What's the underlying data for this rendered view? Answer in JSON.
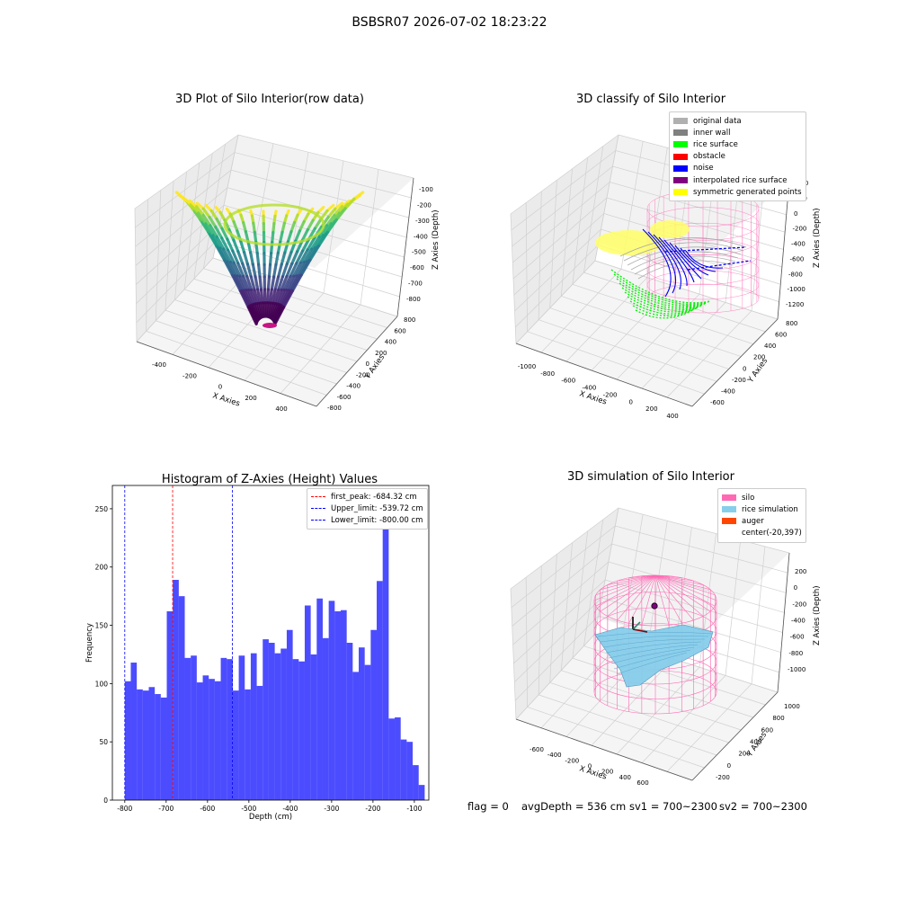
{
  "suptitle": "BSBSR07 2026-07-02 18:23:22",
  "panels": {
    "raw": {
      "title": "3D Plot of Silo Interior(row data)",
      "xlabel": "X Axies",
      "ylabel": "Y Axies",
      "zlabel": "Z Axies (Depth)",
      "xticks": [
        "-400",
        "-200",
        "0",
        "200",
        "400"
      ],
      "yticks": [
        "800",
        "600",
        "400",
        "200",
        "0",
        "-200",
        "-400",
        "-600",
        "-800"
      ],
      "zticks": [
        "-100",
        "-200",
        "-300",
        "-400",
        "-500",
        "-600",
        "-700",
        "-800"
      ]
    },
    "classify": {
      "title": "3D classify of Silo Interior",
      "xlabel": "X Axies",
      "ylabel": "Y Axies",
      "zlabel": "Z Axies (Depth)",
      "xticks": [
        "-1000",
        "-800",
        "-600",
        "-400",
        "-200",
        "0",
        "200",
        "400"
      ],
      "yticks": [
        "800",
        "600",
        "400",
        "200",
        "0",
        "-200",
        "-400",
        "-600"
      ],
      "zticks": [
        "400",
        "200",
        "0",
        "-200",
        "-400",
        "-600",
        "-800",
        "-1000",
        "-1200"
      ],
      "legend": [
        {
          "label": "original data",
          "color": "#b0b0b0"
        },
        {
          "label": "inner wall",
          "color": "#808080"
        },
        {
          "label": "rice surface",
          "color": "#00ff00"
        },
        {
          "label": "obstacle",
          "color": "#ff0000"
        },
        {
          "label": "noise",
          "color": "#0000ff"
        },
        {
          "label": "interpolated rice surface",
          "color": "#800080"
        },
        {
          "label": "symmetric generated points",
          "color": "#ffff00"
        }
      ]
    },
    "simulation": {
      "title": "3D simulation of Silo Interior",
      "xlabel": "X Axies",
      "ylabel": "Y Axies",
      "zlabel": "Z Axies (Depth)",
      "xticks": [
        "-600",
        "-400",
        "-200",
        "0",
        "200",
        "400",
        "600"
      ],
      "yticks": [
        "1000",
        "800",
        "600",
        "400",
        "200",
        "0",
        "-200"
      ],
      "zticks": [
        "200",
        "0",
        "-200",
        "-400",
        "-600",
        "-800",
        "-1000"
      ],
      "legend": [
        {
          "label": "silo",
          "color": "#ff69b4"
        },
        {
          "label": "rice simulation",
          "color": "#87ceeb"
        },
        {
          "label": "auger",
          "color": "#ff4500"
        },
        {
          "label": "center(-20,397)",
          "color": ""
        }
      ]
    }
  },
  "chart_data": {
    "type": "bar",
    "title": "Histogram of Z-Axies (Height) Values",
    "xlabel": "Depth (cm)",
    "ylabel": "Frequency",
    "xlim": [
      -830,
      -65
    ],
    "ylim": [
      0,
      270
    ],
    "xticks": [
      -800,
      -700,
      -600,
      -500,
      -400,
      -300,
      -200,
      -100
    ],
    "yticks": [
      0,
      50,
      100,
      150,
      200,
      250
    ],
    "bin_width": 14.5,
    "x_start": -800,
    "values": [
      102,
      118,
      95,
      94,
      97,
      91,
      88,
      162,
      189,
      175,
      122,
      124,
      101,
      107,
      104,
      102,
      122,
      121,
      94,
      124,
      95,
      126,
      98,
      138,
      135,
      126,
      130,
      146,
      121,
      119,
      167,
      125,
      173,
      139,
      171,
      162,
      163,
      135,
      110,
      131,
      116,
      146,
      188,
      260,
      70,
      71,
      52,
      50,
      30,
      13
    ],
    "color": "#0000ff",
    "vlines": [
      {
        "x": -684.32,
        "color": "#ff0000",
        "label": "first_peak: -684.32 cm"
      },
      {
        "x": -539.72,
        "color": "#0000ff",
        "label": "Upper_limit: -539.72 cm"
      },
      {
        "x": -800.0,
        "color": "#0000ff",
        "label": "Lower_limit: -800.00 cm"
      }
    ]
  },
  "footer": {
    "flag": "flag = 0",
    "avg": "avgDepth = 536 cm",
    "sv1": "sv1 = 700~2300",
    "sv2": "sv2 = 700~2300"
  }
}
